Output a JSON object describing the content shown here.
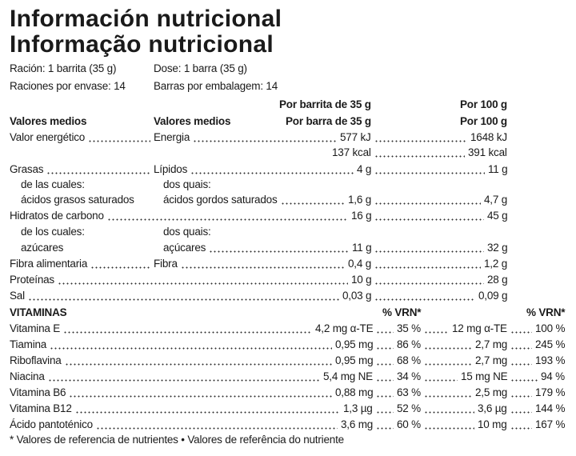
{
  "title": [
    "Información nutricional",
    "Informação nutricional"
  ],
  "serving": {
    "es": [
      "Ración: 1 barrita (35 g)",
      "Raciones por envase: 14"
    ],
    "pt": [
      "Dose: 1 barra (35 g)",
      "Barras por embalagem: 14"
    ]
  },
  "columns": {
    "per_portion": [
      "Por barrita de 35 g",
      "Por barra de 35 g"
    ],
    "per_100": [
      "Por 100 g",
      "Por 100 g"
    ],
    "label": [
      "Valores medios",
      "Valores medios"
    ]
  },
  "nutrients": [
    {
      "es": "Valor energético",
      "pt": "Energia",
      "portion": "577 kJ",
      "per_100": "1648 kJ"
    },
    {
      "portion": "137 kcal",
      "per_100": "391 kcal"
    },
    {
      "es": "Grasas",
      "pt": "Lípidos",
      "portion": "4 g",
      "per_100": "11 g"
    },
    {
      "es": "de las cuales:",
      "pt": "dos quais:"
    },
    {
      "es": "ácidos grasos saturados",
      "pt": "ácidos gordos saturados",
      "portion": "1,6 g",
      "per_100": "4,7 g"
    },
    {
      "es": "Hidratos de carbono",
      "portion": "16 g",
      "per_100": "45 g"
    },
    {
      "es": "de los cuales:",
      "pt": "dos quais:"
    },
    {
      "es": "azúcares",
      "pt": "açúcares",
      "portion": "11 g",
      "per_100": "32 g"
    },
    {
      "es": "Fibra alimentaria",
      "pt": "Fibra",
      "portion": "0,4 g",
      "per_100": "1,2 g"
    },
    {
      "es": "Proteínas",
      "portion": "10 g",
      "per_100": "28 g"
    },
    {
      "es": "Sal",
      "portion": "0,03 g",
      "per_100": "0,09 g"
    }
  ],
  "vitamins": {
    "title": "VITAMINAS",
    "pct": [
      "% VRN*",
      "% VRN*"
    ],
    "rows": [
      {
        "name": "Vitamina E",
        "portion": "4,2 mg α-TE",
        "portion_pct": "35 %",
        "per_100": "12 mg α-TE",
        "per_100_pct": "100 %"
      },
      {
        "name": "Tiamina",
        "portion": "0,95 mg",
        "portion_pct": "86 %",
        "per_100": "2,7 mg",
        "per_100_pct": "245 %"
      },
      {
        "name": "Riboflavina",
        "portion": "0,95 mg",
        "portion_pct": "68 %",
        "per_100": "2,7 mg",
        "per_100_pct": "193 %"
      },
      {
        "name": "Niacina",
        "portion": "5,4 mg NE",
        "portion_pct": "34 %",
        "per_100": "15 mg NE",
        "per_100_pct": "94 %"
      },
      {
        "name": "Vitamina B6",
        "portion": "0,88 mg",
        "portion_pct": "63 %",
        "per_100": "2,5 mg",
        "per_100_pct": "179 %"
      },
      {
        "name": "Vitamina B12",
        "portion": "1,3 µg",
        "portion_pct": "52 %",
        "per_100": "3,6 µg",
        "per_100_pct": "144 %"
      },
      {
        "name": "Ácido pantoténico",
        "portion": "3,6 mg",
        "portion_pct": "60 %",
        "per_100": "10 mg",
        "per_100_pct": "167 %"
      }
    ]
  },
  "footnote": "* Valores de referencia de nutrientes • Valores de referência do nutriente"
}
